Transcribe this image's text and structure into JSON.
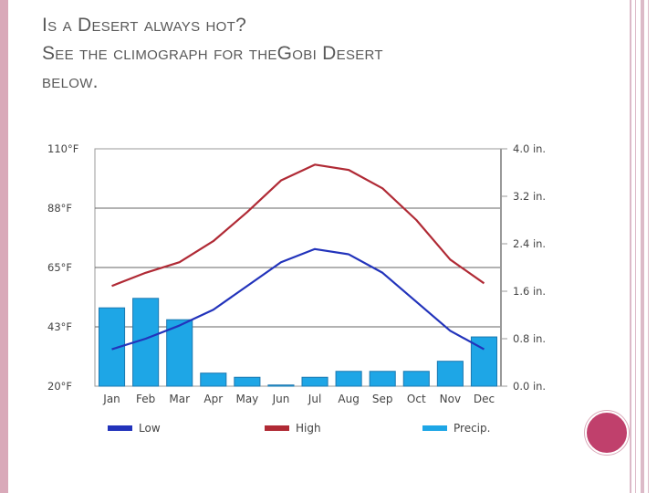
{
  "slide": {
    "title_lines": [
      "Is a Desert always hot?",
      "See the climograph for theGobi Desert",
      "below."
    ],
    "accent_color": "#c0406c",
    "border_color": "#d9a9b9"
  },
  "chart_data": {
    "type": "bar+line",
    "categories": [
      "Jan",
      "Feb",
      "Mar",
      "Apr",
      "May",
      "Jun",
      "Jul",
      "Aug",
      "Sep",
      "Oct",
      "Nov",
      "Dec"
    ],
    "left_axis": {
      "ticks": [
        "110°F",
        "88°F",
        "65°F",
        "43°F",
        "20°F"
      ],
      "ylim": [
        20,
        110
      ]
    },
    "right_axis": {
      "ticks": [
        "4.0 in.",
        "3.2 in.",
        "2.4 in.",
        "1.6 in.",
        "0.8 in.",
        "0.0 in."
      ],
      "ylim": [
        0,
        4.0
      ]
    },
    "series": [
      {
        "name": "Low",
        "type": "line",
        "axis": "left",
        "color": "#2233bb",
        "values": [
          34,
          38,
          43,
          49,
          58,
          67,
          72,
          70,
          63,
          52,
          41,
          34
        ]
      },
      {
        "name": "High",
        "type": "line",
        "axis": "left",
        "color": "#b02a35",
        "values": [
          58,
          63,
          67,
          75,
          86,
          98,
          104,
          102,
          95,
          83,
          68,
          59
        ]
      },
      {
        "name": "Precip.",
        "type": "bar",
        "axis": "right",
        "color": "#1ea6e6",
        "values": [
          1.32,
          1.48,
          1.12,
          0.22,
          0.15,
          0.02,
          0.15,
          0.25,
          0.25,
          0.25,
          0.42,
          0.83
        ]
      }
    ],
    "grid": true
  }
}
